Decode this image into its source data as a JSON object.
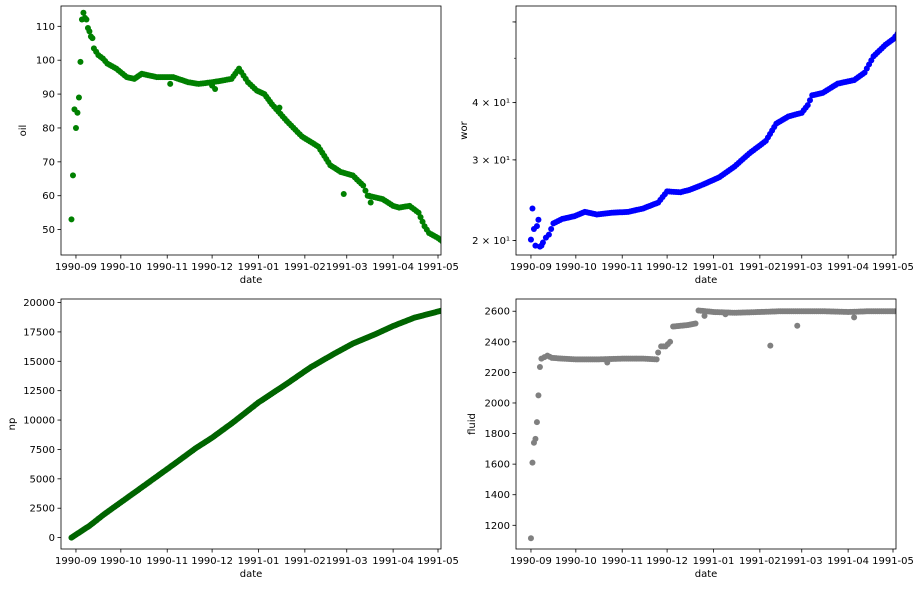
{
  "figure": {
    "background": "#ffffff"
  },
  "chart_data": [
    {
      "type": "scatter",
      "xlabel": "date",
      "ylabel": "oil",
      "color": "#008000",
      "yscale": "linear",
      "xlim": [
        "1990-08-22",
        "1991-05-03"
      ],
      "ylim": [
        42.5,
        116
      ],
      "xticks": [
        "1990-09",
        "1990-10",
        "1990-11",
        "1990-12",
        "1991-01",
        "1991-02",
        "1991-03",
        "1991-04",
        "1991-05"
      ],
      "yticks": [
        {
          "value": 50,
          "label": "50"
        },
        {
          "value": 60,
          "label": "60"
        },
        {
          "value": 70,
          "label": "70"
        },
        {
          "value": 80,
          "label": "80"
        },
        {
          "value": 90,
          "label": "90"
        },
        {
          "value": 100,
          "label": "100"
        },
        {
          "value": 110,
          "label": "110"
        }
      ],
      "curve": [
        [
          "1990-08-29",
          53
        ],
        [
          "1990-08-30",
          66
        ],
        [
          "1990-08-31",
          85.5
        ],
        [
          "1990-09-01",
          80
        ],
        [
          "1990-09-02",
          84.5
        ],
        [
          "1990-09-03",
          89
        ],
        [
          "1990-09-04",
          99.5
        ],
        [
          "1990-09-05",
          112
        ],
        [
          "1990-09-06",
          114
        ],
        [
          "1990-09-07",
          112.5
        ],
        [
          "1990-09-08",
          112
        ],
        [
          "1990-09-09",
          109.5
        ],
        [
          "1990-09-10",
          108.5
        ],
        [
          "1990-09-11",
          107
        ],
        [
          "1990-09-12",
          106.5
        ],
        [
          "1990-09-13",
          103.5
        ],
        [
          "1990-09-16",
          101.5
        ],
        [
          "1990-09-19",
          100.5
        ],
        [
          "1990-09-22",
          99
        ],
        [
          "1990-09-28",
          97.5
        ],
        [
          "1990-10-05",
          95
        ],
        [
          "1990-10-10",
          94.5
        ],
        [
          "1990-10-15",
          96
        ],
        [
          "1990-10-25",
          95
        ],
        [
          "1990-11-05",
          95
        ],
        [
          "1990-11-15",
          93.5
        ],
        [
          "1990-11-22",
          93
        ],
        [
          "1990-12-01",
          93.5
        ],
        [
          "1990-12-08",
          94
        ],
        [
          "1990-12-14",
          94.5
        ],
        [
          "1990-12-19",
          97.5
        ],
        [
          "1990-12-25",
          93.5
        ],
        [
          "1990-12-31",
          91
        ],
        [
          "1991-01-05",
          90
        ],
        [
          "1991-01-10",
          87
        ],
        [
          "1991-01-20",
          82
        ],
        [
          "1991-01-30",
          77.5
        ],
        [
          "1991-02-10",
          74.5
        ],
        [
          "1991-02-18",
          69
        ],
        [
          "1991-02-25",
          67
        ],
        [
          "1991-03-05",
          66
        ],
        [
          "1991-03-12",
          63
        ],
        [
          "1991-03-15",
          60
        ],
        [
          "1991-03-25",
          59
        ],
        [
          "1991-04-01",
          57
        ],
        [
          "1991-04-05",
          56.5
        ],
        [
          "1991-04-12",
          57
        ],
        [
          "1991-04-18",
          55
        ],
        [
          "1991-04-22",
          51
        ],
        [
          "1991-04-25",
          49
        ],
        [
          "1991-05-01",
          47.5
        ],
        [
          "1991-05-04",
          46.5
        ],
        [
          "1991-05-06",
          45
        ]
      ],
      "outliers": [
        [
          "1990-11-03",
          93
        ],
        [
          "1990-12-03",
          91.5
        ],
        [
          "1990-12-01",
          92.5
        ],
        [
          "1991-02-27",
          60.5
        ],
        [
          "1991-03-17",
          58
        ],
        [
          "1991-03-16",
          60
        ],
        [
          "1991-01-15",
          86
        ]
      ]
    },
    {
      "type": "scatter",
      "xlabel": "date",
      "ylabel": "wor",
      "color": "#0000ff",
      "yscale": "log",
      "xlim": [
        "1990-08-22",
        "1991-05-03"
      ],
      "ylim": [
        18.6,
        65
      ],
      "xticks": [
        "1990-09",
        "1990-10",
        "1990-11",
        "1990-12",
        "1991-01",
        "1991-02",
        "1991-03",
        "1991-04",
        "1991-05"
      ],
      "yticks": [
        {
          "value": 20,
          "label": "2 × 10¹"
        },
        {
          "value": 30,
          "label": "3 × 10¹"
        },
        {
          "value": 40,
          "label": "4 × 10¹"
        },
        {
          "value": 60,
          "label": ""
        }
      ],
      "curve": [
        [
          "1990-09-01",
          20.1
        ],
        [
          "1990-09-02",
          23.5
        ],
        [
          "1990-09-03",
          21.2
        ],
        [
          "1990-09-04",
          19.5
        ],
        [
          "1990-09-05",
          21.5
        ],
        [
          "1990-09-06",
          22.2
        ],
        [
          "1990-09-07",
          19.4
        ],
        [
          "1990-09-08",
          19.5
        ],
        [
          "1990-09-09",
          19.8
        ],
        [
          "1990-09-11",
          20.3
        ],
        [
          "1990-09-13",
          20.6
        ],
        [
          "1990-09-16",
          21.8
        ],
        [
          "1990-09-22",
          22.3
        ],
        [
          "1990-09-30",
          22.6
        ],
        [
          "1990-10-07",
          23.1
        ],
        [
          "1990-10-15",
          22.8
        ],
        [
          "1990-10-25",
          23.0
        ],
        [
          "1990-11-05",
          23.1
        ],
        [
          "1990-11-15",
          23.5
        ],
        [
          "1990-11-25",
          24.2
        ],
        [
          "1990-12-01",
          25.6
        ],
        [
          "1990-12-10",
          25.5
        ],
        [
          "1990-12-16",
          25.8
        ],
        [
          "1990-12-25",
          26.5
        ],
        [
          "1991-01-05",
          27.5
        ],
        [
          "1991-01-15",
          29.0
        ],
        [
          "1991-01-25",
          31.0
        ],
        [
          "1991-02-05",
          33.0
        ],
        [
          "1991-02-12",
          36.0
        ],
        [
          "1991-02-20",
          37.3
        ],
        [
          "1991-03-01",
          38.0
        ],
        [
          "1991-03-05",
          39.5
        ],
        [
          "1991-03-08",
          41.5
        ],
        [
          "1991-03-15",
          42.0
        ],
        [
          "1991-03-25",
          44.0
        ],
        [
          "1991-04-05",
          44.8
        ],
        [
          "1991-04-12",
          46.5
        ],
        [
          "1991-04-18",
          50.5
        ],
        [
          "1991-04-26",
          53.5
        ],
        [
          "1991-05-01",
          55.0
        ],
        [
          "1991-05-04",
          56.5
        ],
        [
          "1991-05-06",
          60.5
        ]
      ],
      "outliers": []
    },
    {
      "type": "scatter",
      "xlabel": "date",
      "ylabel": "np",
      "color": "#006400",
      "yscale": "linear",
      "xlim": [
        "1990-08-22",
        "1991-05-03"
      ],
      "ylim": [
        -970,
        20300
      ],
      "xticks": [
        "1990-09",
        "1990-10",
        "1990-11",
        "1990-12",
        "1991-01",
        "1991-02",
        "1991-03",
        "1991-04",
        "1991-05"
      ],
      "yticks": [
        {
          "value": 0,
          "label": "0"
        },
        {
          "value": 2500,
          "label": "2500"
        },
        {
          "value": 5000,
          "label": "5000"
        },
        {
          "value": 7500,
          "label": "7500"
        },
        {
          "value": 10000,
          "label": "10000"
        },
        {
          "value": 12500,
          "label": "12500"
        },
        {
          "value": 15000,
          "label": "15000"
        },
        {
          "value": 17500,
          "label": "17500"
        },
        {
          "value": 20000,
          "label": "20000"
        }
      ],
      "curve": [
        [
          "1990-08-29",
          0
        ],
        [
          "1990-09-10",
          1000
        ],
        [
          "1990-09-20",
          2000
        ],
        [
          "1990-10-01",
          3000
        ],
        [
          "1990-10-12",
          4000
        ],
        [
          "1990-10-24",
          5100
        ],
        [
          "1990-11-05",
          6200
        ],
        [
          "1990-11-20",
          7600
        ],
        [
          "1990-12-01",
          8500
        ],
        [
          "1990-12-15",
          9800
        ],
        [
          "1991-01-01",
          11500
        ],
        [
          "1991-01-20",
          13100
        ],
        [
          "1991-02-05",
          14500
        ],
        [
          "1991-02-20",
          15600
        ],
        [
          "1991-03-05",
          16500
        ],
        [
          "1991-03-20",
          17300
        ],
        [
          "1991-04-01",
          18000
        ],
        [
          "1991-04-15",
          18700
        ],
        [
          "1991-05-06",
          19400
        ]
      ],
      "outliers": []
    },
    {
      "type": "scatter",
      "xlabel": "date",
      "ylabel": "fluid",
      "color": "#808080",
      "yscale": "linear",
      "xlim": [
        "1990-08-22",
        "1991-05-03"
      ],
      "ylim": [
        1045,
        2680
      ],
      "xticks": [
        "1990-09",
        "1990-10",
        "1990-11",
        "1990-12",
        "1991-01",
        "1991-02",
        "1991-03",
        "1991-04",
        "1991-05"
      ],
      "yticks": [
        {
          "value": 1200,
          "label": "1200"
        },
        {
          "value": 1400,
          "label": "1400"
        },
        {
          "value": 1600,
          "label": "1600"
        },
        {
          "value": 1800,
          "label": "1800"
        },
        {
          "value": 2000,
          "label": "2000"
        },
        {
          "value": 2200,
          "label": "2200"
        },
        {
          "value": 2400,
          "label": "2400"
        },
        {
          "value": 2600,
          "label": "2600"
        }
      ],
      "curve": [
        [
          "1990-09-01",
          1115
        ],
        [
          "1990-09-02",
          1610
        ],
        [
          "1990-09-03",
          1740
        ],
        [
          "1990-09-04",
          1765
        ],
        [
          "1990-09-05",
          1875
        ],
        [
          "1990-09-06",
          2050
        ],
        [
          "1990-09-07",
          2235
        ],
        [
          "1990-09-08",
          2290
        ],
        [
          "1990-09-10",
          2300
        ],
        [
          "1990-09-12",
          2310
        ],
        [
          "1990-09-15",
          2295
        ],
        [
          "1990-09-22",
          2290
        ],
        [
          "1990-10-01",
          2285
        ],
        [
          "1990-10-15",
          2285
        ],
        [
          "1990-11-01",
          2290
        ],
        [
          "1990-11-15",
          2290
        ],
        [
          "1990-11-24",
          2285
        ],
        [
          "1990-11-25",
          2330
        ],
        [
          "1990-11-27",
          2370
        ],
        [
          "1990-11-30",
          2370
        ],
        [
          "1990-12-03",
          2400
        ],
        [
          "1990-12-05",
          2500
        ],
        [
          "1990-12-10",
          2505
        ],
        [
          "1990-12-15",
          2510
        ],
        [
          "1990-12-20",
          2520
        ],
        [
          "1990-12-22",
          2605
        ],
        [
          "1991-01-01",
          2595
        ],
        [
          "1991-01-15",
          2590
        ],
        [
          "1991-02-01",
          2595
        ],
        [
          "1991-02-15",
          2600
        ],
        [
          "1991-03-01",
          2600
        ],
        [
          "1991-03-15",
          2600
        ],
        [
          "1991-04-01",
          2595
        ],
        [
          "1991-04-15",
          2600
        ],
        [
          "1991-05-06",
          2600
        ]
      ],
      "outliers": [
        [
          "1991-02-08",
          2375
        ],
        [
          "1991-02-26",
          2505
        ],
        [
          "1990-10-22",
          2265
        ],
        [
          "1991-04-05",
          2560
        ],
        [
          "1991-01-09",
          2580
        ],
        [
          "1990-12-26",
          2570
        ]
      ]
    }
  ]
}
